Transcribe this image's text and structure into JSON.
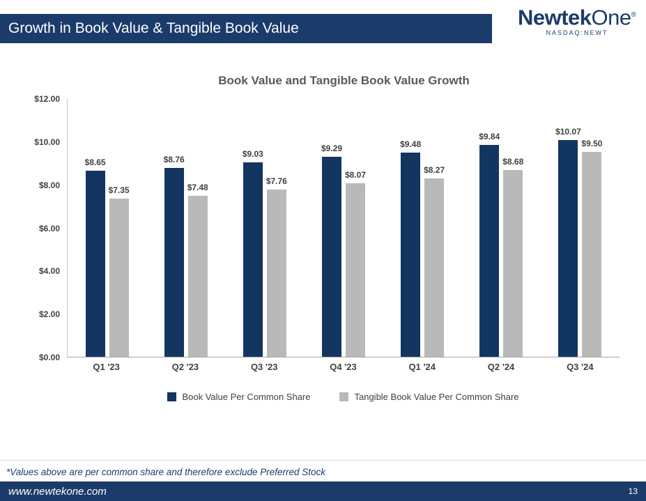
{
  "header": {
    "title": "Growth in Book Value & Tangible Book Value",
    "logo": {
      "brand_bold": "Newtek",
      "brand_light": "One",
      "registered": "®",
      "subtitle": "NASDAQ:NEWT"
    }
  },
  "chart_data": {
    "type": "bar",
    "title": "Book Value and Tangible Book Value Growth",
    "categories": [
      "Q1 '23",
      "Q2 '23",
      "Q3 '23",
      "Q4 '23",
      "Q1 '24",
      "Q2 '24",
      "Q3 '24"
    ],
    "series": [
      {
        "name": "Book Value Per Common Share",
        "color": "#12365f",
        "values": [
          8.65,
          8.76,
          9.03,
          9.29,
          9.48,
          9.84,
          10.07
        ]
      },
      {
        "name": "Tangible Book Value Per Common Share",
        "color": "#b9b9b9",
        "values": [
          7.35,
          7.48,
          7.76,
          8.07,
          8.27,
          8.68,
          9.5
        ]
      }
    ],
    "ylim": [
      0,
      12
    ],
    "ytick_step": 2,
    "ytick_labels": [
      "$0.00",
      "$2.00",
      "$4.00",
      "$6.00",
      "$8.00",
      "$10.00",
      "$12.00"
    ],
    "value_prefix": "$",
    "legend_position": "bottom",
    "grid": false
  },
  "footnote": {
    "text": "*Values above are per common share and therefore exclude Preferred Stock"
  },
  "footer": {
    "url": "www.newtekone.com",
    "page_number": "13"
  }
}
